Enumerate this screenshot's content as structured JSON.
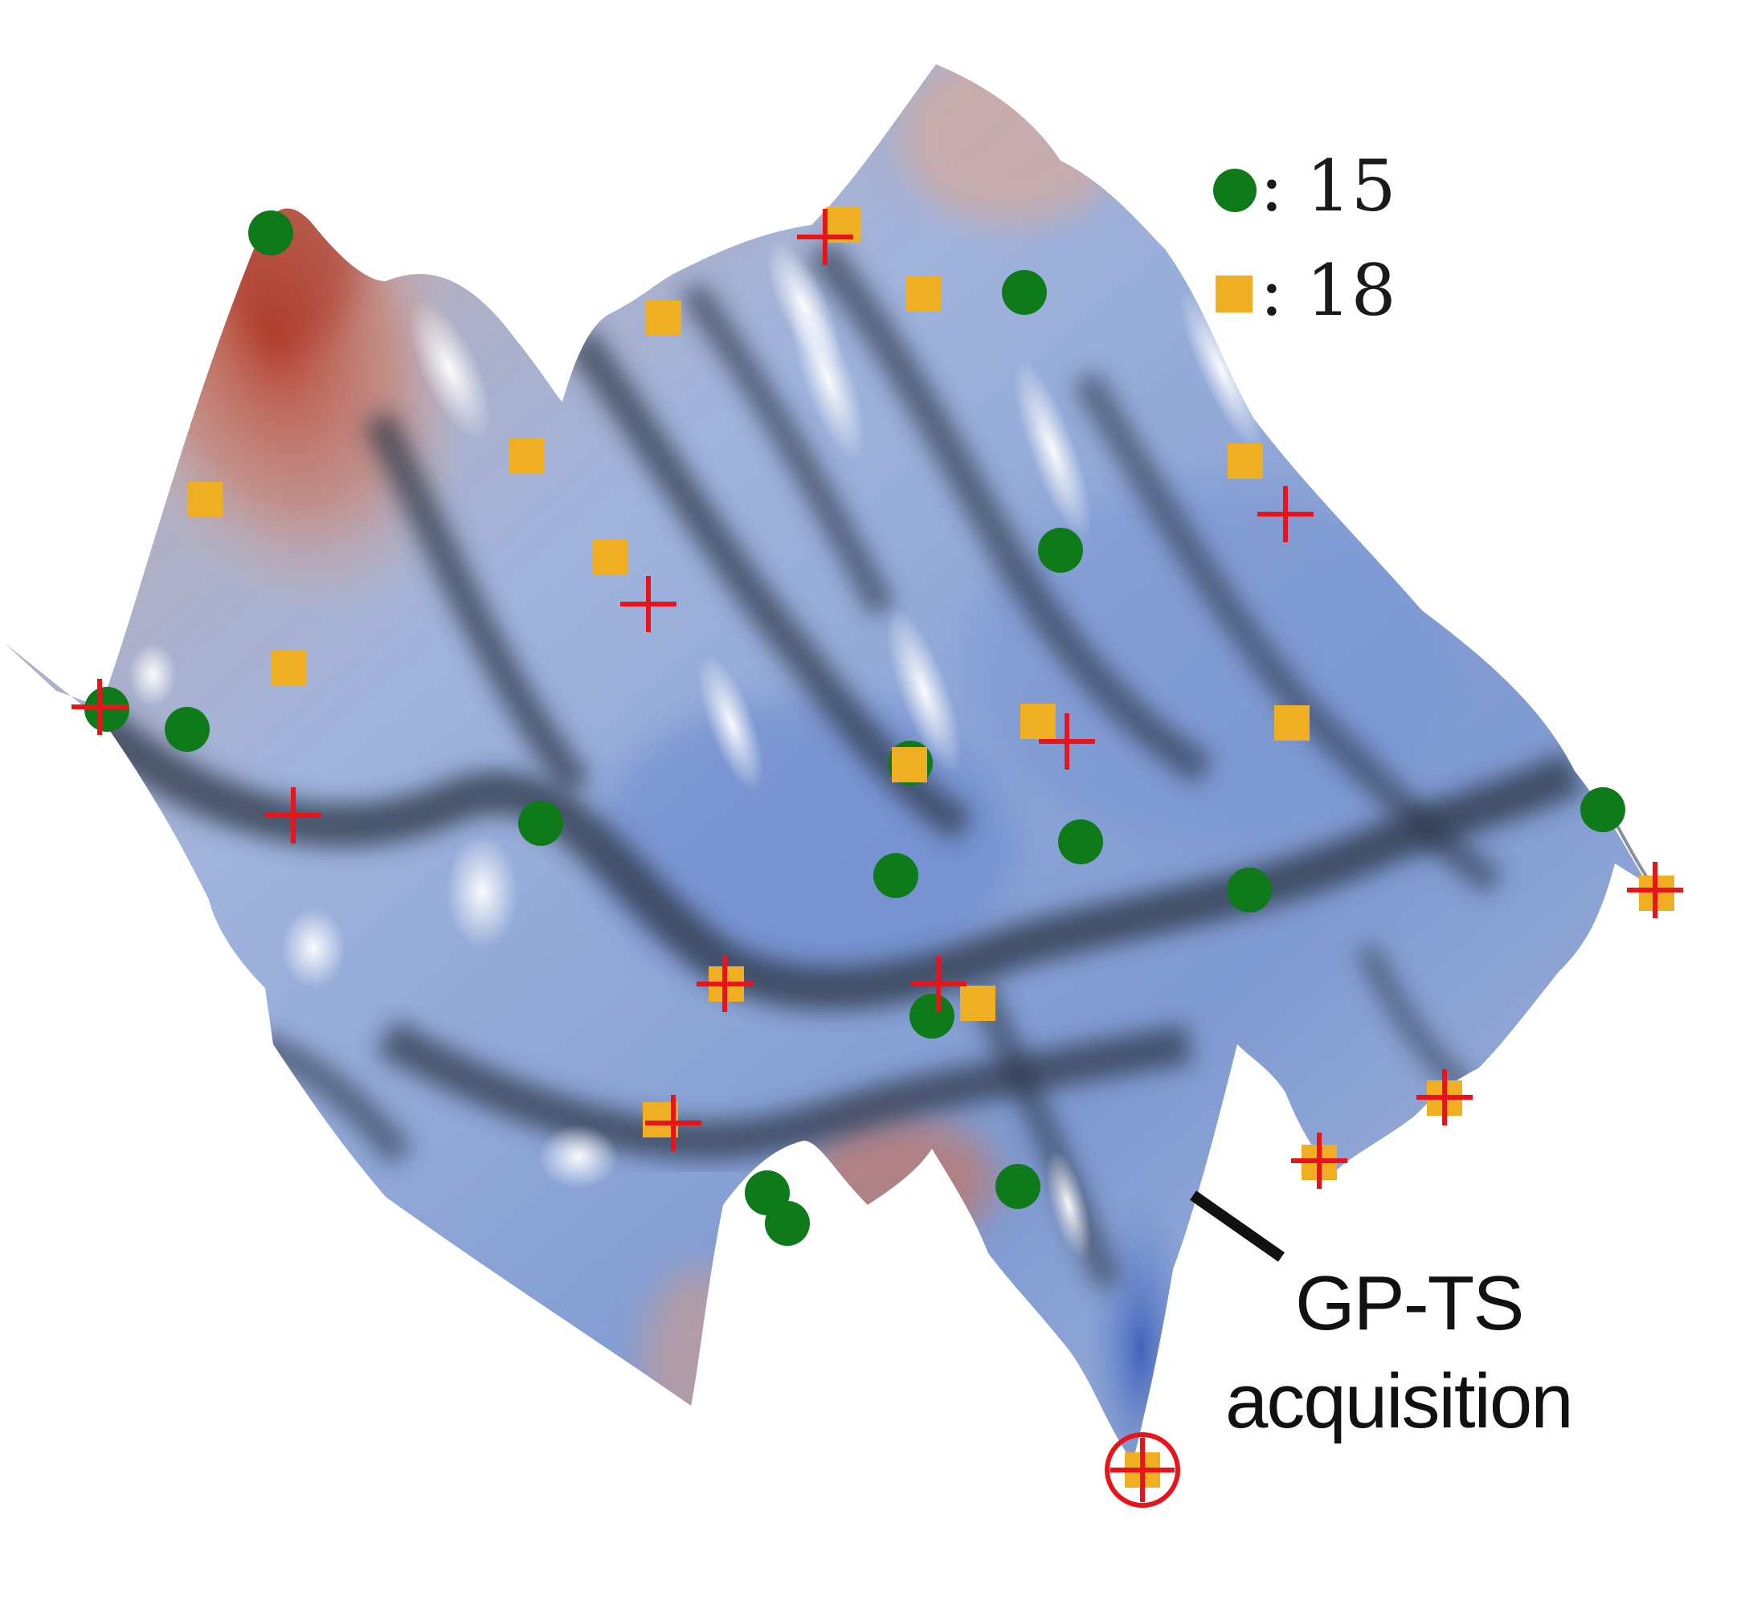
{
  "legend": {
    "circle_count": "15",
    "square_count": "18",
    "circle_label": ": 15",
    "square_label": ": 18"
  },
  "annotation": {
    "line1": "GP-TS",
    "line2": "acquisition"
  },
  "colors": {
    "circle": "#0f7a1a",
    "square": "#f0ae22",
    "cross": "#e8131b",
    "surface_blue": "#86a0d6",
    "surface_red": "#c45a44",
    "surface_dark": "#2f3a4e"
  },
  "icons": {
    "circle_marker": "filled-green-circle",
    "square_marker": "filled-orange-square",
    "cross_marker": "red-plus",
    "acquisition_marker": "red-circled-plus"
  }
}
